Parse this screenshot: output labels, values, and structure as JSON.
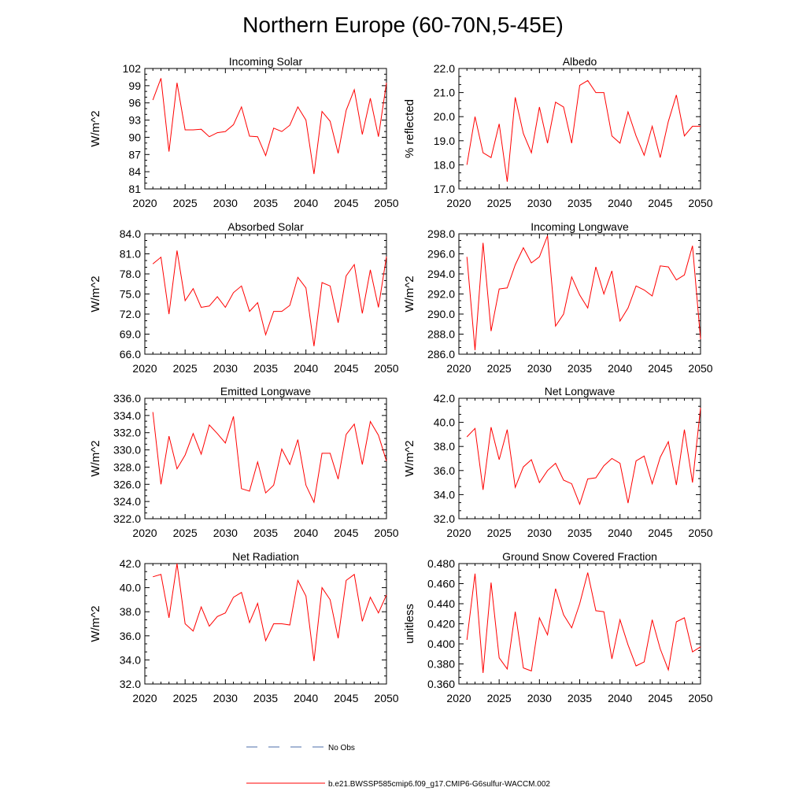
{
  "title": "Northern Europe (60-70N,5-45E)",
  "chart_data": [
    {
      "type": "line",
      "title": "Incoming Solar",
      "ylabel": "W/m^2",
      "xlim": [
        2020,
        2050
      ],
      "ylim": [
        81,
        102
      ],
      "xticks": [
        "2020",
        "2025",
        "2030",
        "2035",
        "2040",
        "2045",
        "2050"
      ],
      "yticks": [
        "81",
        "84",
        "87",
        "90",
        "93",
        "96",
        "99",
        "102"
      ],
      "x": [
        2021,
        2022,
        2023,
        2024,
        2025,
        2026,
        2027,
        2028,
        2029,
        2030,
        2031,
        2032,
        2033,
        2034,
        2035,
        2036,
        2037,
        2038,
        2039,
        2040,
        2041,
        2042,
        2043,
        2044,
        2045,
        2046,
        2047,
        2048,
        2049,
        2050
      ],
      "series": [
        {
          "name": "b.e21.BWSSP585cmip6.f09_g17.CMIP6-G6sulfur-WACCM.002",
          "color": "#ff0000",
          "values": [
            96.5,
            100.3,
            87.5,
            99.5,
            91.3,
            91.3,
            91.4,
            90.1,
            90.8,
            91.0,
            92.2,
            95.3,
            90.2,
            90.1,
            86.8,
            91.6,
            91.0,
            92.1,
            95.3,
            93.0,
            83.6,
            94.5,
            92.8,
            87.2,
            94.7,
            98.3,
            90.5,
            96.8,
            90.1,
            99.5
          ]
        }
      ]
    },
    {
      "type": "line",
      "title": "Albedo",
      "ylabel": "% reflected",
      "xlim": [
        2020,
        2050
      ],
      "ylim": [
        17.0,
        22.0
      ],
      "xticks": [
        "2020",
        "2025",
        "2030",
        "2035",
        "2040",
        "2045",
        "2050"
      ],
      "yticks": [
        "17.0",
        "18.0",
        "19.0",
        "20.0",
        "21.0",
        "22.0"
      ],
      "x": [
        2021,
        2022,
        2023,
        2024,
        2025,
        2026,
        2027,
        2028,
        2029,
        2030,
        2031,
        2032,
        2033,
        2034,
        2035,
        2036,
        2037,
        2038,
        2039,
        2040,
        2041,
        2042,
        2043,
        2044,
        2045,
        2046,
        2047,
        2048,
        2049,
        2050
      ],
      "series": [
        {
          "name": "b.e21.BWSSP585cmip6.f09_g17.CMIP6-G6sulfur-WACCM.002",
          "color": "#ff0000",
          "values": [
            18.0,
            20.0,
            18.5,
            18.3,
            19.7,
            17.3,
            20.8,
            19.3,
            18.5,
            20.4,
            18.9,
            20.6,
            20.4,
            18.9,
            21.3,
            21.5,
            21.0,
            21.0,
            19.2,
            18.9,
            20.2,
            19.2,
            18.4,
            19.6,
            18.3,
            19.8,
            20.9,
            19.2,
            19.6,
            19.6
          ]
        }
      ]
    },
    {
      "type": "line",
      "title": "Absorbed Solar",
      "ylabel": "W/m^2",
      "xlim": [
        2020,
        2050
      ],
      "ylim": [
        66.0,
        84.0
      ],
      "xticks": [
        "2020",
        "2025",
        "2030",
        "2035",
        "2040",
        "2045",
        "2050"
      ],
      "yticks": [
        "66.0",
        "69.0",
        "72.0",
        "75.0",
        "78.0",
        "81.0",
        "84.0"
      ],
      "x": [
        2021,
        2022,
        2023,
        2024,
        2025,
        2026,
        2027,
        2028,
        2029,
        2030,
        2031,
        2032,
        2033,
        2034,
        2035,
        2036,
        2037,
        2038,
        2039,
        2040,
        2041,
        2042,
        2043,
        2044,
        2045,
        2046,
        2047,
        2048,
        2049,
        2050
      ],
      "series": [
        {
          "name": "b.e21.BWSSP585cmip6.f09_g17.CMIP6-G6sulfur-WACCM.002",
          "color": "#ff0000",
          "values": [
            79.5,
            80.5,
            72.0,
            81.5,
            74.0,
            75.8,
            73.0,
            73.2,
            74.6,
            73.0,
            75.2,
            76.2,
            72.4,
            73.7,
            68.9,
            72.4,
            72.4,
            73.3,
            77.5,
            75.9,
            67.2,
            76.7,
            76.2,
            70.7,
            77.7,
            79.4,
            72.1,
            78.6,
            73.0,
            80.6
          ]
        }
      ]
    },
    {
      "type": "line",
      "title": "Incoming Longwave",
      "ylabel": "W/m^2",
      "xlim": [
        2020,
        2050
      ],
      "ylim": [
        286.0,
        298.0
      ],
      "xticks": [
        "2020",
        "2025",
        "2030",
        "2035",
        "2040",
        "2045",
        "2050"
      ],
      "yticks": [
        "286.0",
        "288.0",
        "290.0",
        "292.0",
        "294.0",
        "296.0",
        "298.0"
      ],
      "x": [
        2021,
        2022,
        2023,
        2024,
        2025,
        2026,
        2027,
        2028,
        2029,
        2030,
        2031,
        2032,
        2033,
        2034,
        2035,
        2036,
        2037,
        2038,
        2039,
        2040,
        2041,
        2042,
        2043,
        2044,
        2045,
        2046,
        2047,
        2048,
        2049,
        2050
      ],
      "series": [
        {
          "name": "b.e21.BWSSP585cmip6.f09_g17.CMIP6-G6sulfur-WACCM.002",
          "color": "#ff0000",
          "values": [
            295.7,
            286.4,
            297.1,
            288.3,
            292.5,
            292.6,
            294.9,
            296.6,
            295.1,
            295.7,
            297.8,
            288.8,
            290.0,
            293.7,
            291.9,
            290.6,
            294.7,
            292.0,
            294.3,
            289.3,
            290.6,
            292.8,
            292.4,
            291.8,
            294.8,
            294.7,
            293.4,
            293.9,
            296.8,
            287.5
          ]
        }
      ]
    },
    {
      "type": "line",
      "title": "Emitted Longwave",
      "ylabel": "W/m^2",
      "xlim": [
        2020,
        2050
      ],
      "ylim": [
        322.0,
        336.0
      ],
      "xticks": [
        "2020",
        "2025",
        "2030",
        "2035",
        "2040",
        "2045",
        "2050"
      ],
      "yticks": [
        "322.0",
        "324.0",
        "326.0",
        "328.0",
        "330.0",
        "332.0",
        "334.0",
        "336.0"
      ],
      "x": [
        2021,
        2022,
        2023,
        2024,
        2025,
        2026,
        2027,
        2028,
        2029,
        2030,
        2031,
        2032,
        2033,
        2034,
        2035,
        2036,
        2037,
        2038,
        2039,
        2040,
        2041,
        2042,
        2043,
        2044,
        2045,
        2046,
        2047,
        2048,
        2049,
        2050
      ],
      "series": [
        {
          "name": "b.e21.BWSSP585cmip6.f09_g17.CMIP6-G6sulfur-WACCM.002",
          "color": "#ff0000",
          "values": [
            334.4,
            326.0,
            331.6,
            327.8,
            329.4,
            331.9,
            329.5,
            332.9,
            331.9,
            330.8,
            333.9,
            325.5,
            325.2,
            328.6,
            325.0,
            325.9,
            330.1,
            328.3,
            331.2,
            325.9,
            323.9,
            329.6,
            329.6,
            326.6,
            331.8,
            333.0,
            328.3,
            333.3,
            331.7,
            328.7
          ]
        }
      ]
    },
    {
      "type": "line",
      "title": "Net Longwave",
      "ylabel": "W/m^2",
      "xlim": [
        2020,
        2050
      ],
      "ylim": [
        32.0,
        42.0
      ],
      "xticks": [
        "2020",
        "2025",
        "2030",
        "2035",
        "2040",
        "2045",
        "2050"
      ],
      "yticks": [
        "32.0",
        "34.0",
        "36.0",
        "38.0",
        "40.0",
        "42.0"
      ],
      "x": [
        2021,
        2022,
        2023,
        2024,
        2025,
        2026,
        2027,
        2028,
        2029,
        2030,
        2031,
        2032,
        2033,
        2034,
        2035,
        2036,
        2037,
        2038,
        2039,
        2040,
        2041,
        2042,
        2043,
        2044,
        2045,
        2046,
        2047,
        2048,
        2049,
        2050
      ],
      "series": [
        {
          "name": "b.e21.BWSSP585cmip6.f09_g17.CMIP6-G6sulfur-WACCM.002",
          "color": "#ff0000",
          "values": [
            38.8,
            39.5,
            34.4,
            39.6,
            36.9,
            39.4,
            34.6,
            36.3,
            36.9,
            35.0,
            36.0,
            36.6,
            35.2,
            34.9,
            33.2,
            35.3,
            35.4,
            36.4,
            37.0,
            36.6,
            33.3,
            36.8,
            37.2,
            34.9,
            37.1,
            38.4,
            34.8,
            39.4,
            35.0,
            41.2
          ]
        }
      ]
    },
    {
      "type": "line",
      "title": "Net Radiation",
      "ylabel": "W/m^2",
      "xlim": [
        2020,
        2050
      ],
      "ylim": [
        32.0,
        42.0
      ],
      "xticks": [
        "2020",
        "2025",
        "2030",
        "2035",
        "2040",
        "2045",
        "2050"
      ],
      "yticks": [
        "32.0",
        "34.0",
        "36.0",
        "38.0",
        "40.0",
        "42.0"
      ],
      "x": [
        2021,
        2022,
        2023,
        2024,
        2025,
        2026,
        2027,
        2028,
        2029,
        2030,
        2031,
        2032,
        2033,
        2034,
        2035,
        2036,
        2037,
        2038,
        2039,
        2040,
        2041,
        2042,
        2043,
        2044,
        2045,
        2046,
        2047,
        2048,
        2049,
        2050
      ],
      "series": [
        {
          "name": "b.e21.BWSSP585cmip6.f09_g17.CMIP6-G6sulfur-WACCM.002",
          "color": "#ff0000",
          "values": [
            40.9,
            41.1,
            37.5,
            42.0,
            37.0,
            36.4,
            38.4,
            36.8,
            37.6,
            37.9,
            39.2,
            39.6,
            37.1,
            38.7,
            35.6,
            37.0,
            37.0,
            36.9,
            40.6,
            39.3,
            33.9,
            40.0,
            39.0,
            35.8,
            40.6,
            41.1,
            37.2,
            39.2,
            37.9,
            39.4
          ]
        }
      ]
    },
    {
      "type": "line",
      "title": "Ground Snow Covered Fraction",
      "ylabel": "unitless",
      "xlim": [
        2020,
        2050
      ],
      "ylim": [
        0.36,
        0.48
      ],
      "xticks": [
        "2020",
        "2025",
        "2030",
        "2035",
        "2040",
        "2045",
        "2050"
      ],
      "yticks": [
        "0.360",
        "0.380",
        "0.400",
        "0.420",
        "0.440",
        "0.460",
        "0.480"
      ],
      "x": [
        2021,
        2022,
        2023,
        2024,
        2025,
        2026,
        2027,
        2028,
        2029,
        2030,
        2031,
        2032,
        2033,
        2034,
        2035,
        2036,
        2037,
        2038,
        2039,
        2040,
        2041,
        2042,
        2043,
        2044,
        2045,
        2046,
        2047,
        2048,
        2049,
        2050
      ],
      "series": [
        {
          "name": "b.e21.BWSSP585cmip6.f09_g17.CMIP6-G6sulfur-WACCM.002",
          "color": "#ff0000",
          "values": [
            0.404,
            0.47,
            0.371,
            0.461,
            0.386,
            0.375,
            0.432,
            0.376,
            0.373,
            0.426,
            0.409,
            0.455,
            0.429,
            0.416,
            0.44,
            0.471,
            0.433,
            0.432,
            0.385,
            0.424,
            0.399,
            0.378,
            0.382,
            0.424,
            0.395,
            0.374,
            0.422,
            0.426,
            0.392,
            0.397
          ]
        }
      ]
    }
  ],
  "legend": [
    {
      "label": "No Obs",
      "color": "#4b6ea8",
      "style": "dashed"
    },
    {
      "label": "b.e21.BWSSP585cmip6.f09_g17.CMIP6-G6sulfur-WACCM.002",
      "color": "#ff0000",
      "style": "solid"
    }
  ]
}
